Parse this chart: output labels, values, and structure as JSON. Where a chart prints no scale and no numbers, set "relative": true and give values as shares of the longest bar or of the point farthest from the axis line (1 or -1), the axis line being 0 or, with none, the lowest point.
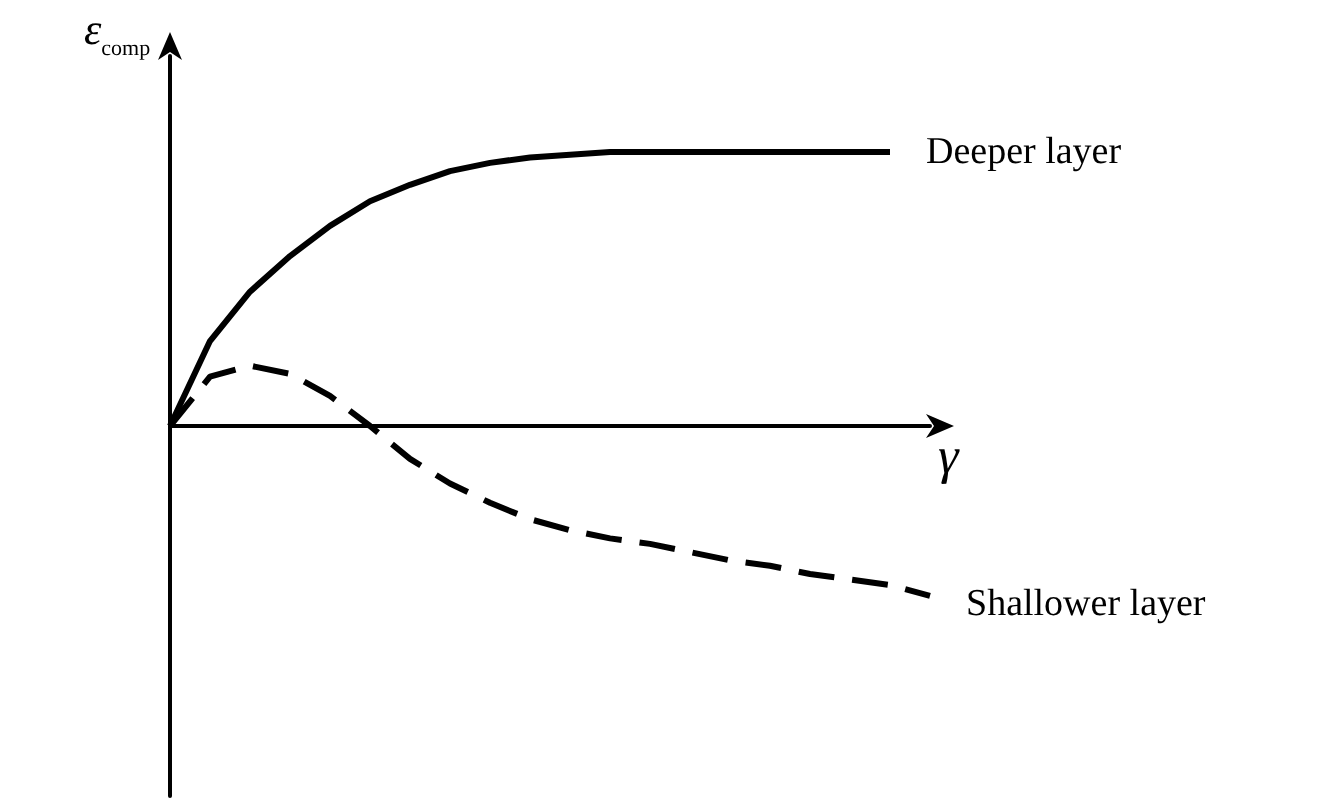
{
  "chart_data": {
    "type": "line",
    "relative": true,
    "xlabel": "γ",
    "ylabel": "ε$_{comp}$",
    "marker": "none",
    "legend": false,
    "grid": false,
    "categories": [
      null,
      null,
      null,
      null,
      null,
      null,
      null,
      null,
      null,
      null,
      null,
      null,
      null,
      null,
      null,
      null,
      null,
      null,
      null,
      null
    ],
    "series": [
      {
        "name": "Deeper layer",
        "color": "#000000",
        "line_style": "solid",
        "values": [
          0,
          0.31,
          0.49,
          0.62,
          0.73,
          0.82,
          0.88,
          0.93,
          0.96,
          0.98,
          0.99,
          1,
          1,
          1,
          1,
          1,
          1,
          1,
          1,
          null
        ]
      },
      {
        "name": "Shallower layer",
        "color": "#000000",
        "line_style": "dashed",
        "values": [
          0,
          0.18,
          0.22,
          0.19,
          0.11,
          0,
          -0.12,
          -0.21,
          -0.28,
          -0.34,
          -0.38,
          -0.41,
          -0.43,
          -0.46,
          -0.49,
          -0.51,
          -0.54,
          -0.56,
          -0.58,
          -0.62
        ]
      }
    ]
  }
}
